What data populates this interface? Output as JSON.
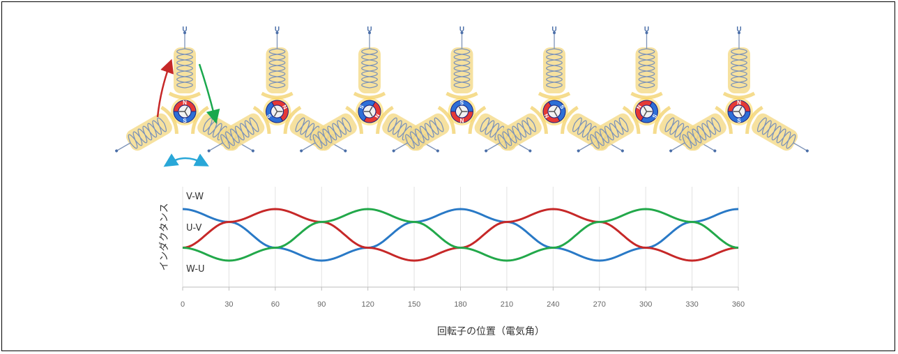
{
  "motors": {
    "terminal_label": "U",
    "pole_n": "N",
    "pole_s": "S",
    "count": 7,
    "rotor_step_deg": 60,
    "coil_color": "#f5dc8e",
    "coil_wire_color": "#7d93b8",
    "arrow_colors": [
      "#c62828",
      "#1aa84d",
      "#29a7d8"
    ]
  },
  "chart_data": {
    "type": "line",
    "x": [
      0,
      30,
      60,
      90,
      120,
      150,
      180,
      210,
      240,
      270,
      300,
      330,
      360
    ],
    "xticks": [
      "0",
      "30",
      "60",
      "90",
      "120",
      "150",
      "180",
      "210",
      "240",
      "270",
      "300",
      "330",
      "360"
    ],
    "xlabel": "回転子の位置（電気角）",
    "ylabel": "インダクタンス",
    "xlim": [
      0,
      360
    ],
    "grid": true,
    "series": [
      {
        "name": "V-W",
        "color": "#2979c6",
        "values": [
          1.0,
          0.5,
          -0.5,
          -1.0,
          -0.5,
          0.5,
          1.0,
          0.5,
          -0.5,
          -1.0,
          -0.5,
          0.5,
          1.0
        ]
      },
      {
        "name": "U-V",
        "color": "#c62828",
        "values": [
          -0.5,
          0.5,
          1.0,
          0.5,
          -0.5,
          -1.0,
          -0.5,
          0.5,
          1.0,
          0.5,
          -0.5,
          -1.0,
          -0.5
        ]
      },
      {
        "name": "W-U",
        "color": "#22a84a",
        "values": [
          -0.5,
          -1.0,
          -0.5,
          0.5,
          1.0,
          0.5,
          -0.5,
          -1.0,
          -0.5,
          0.5,
          1.0,
          0.5,
          -0.5
        ]
      }
    ]
  }
}
